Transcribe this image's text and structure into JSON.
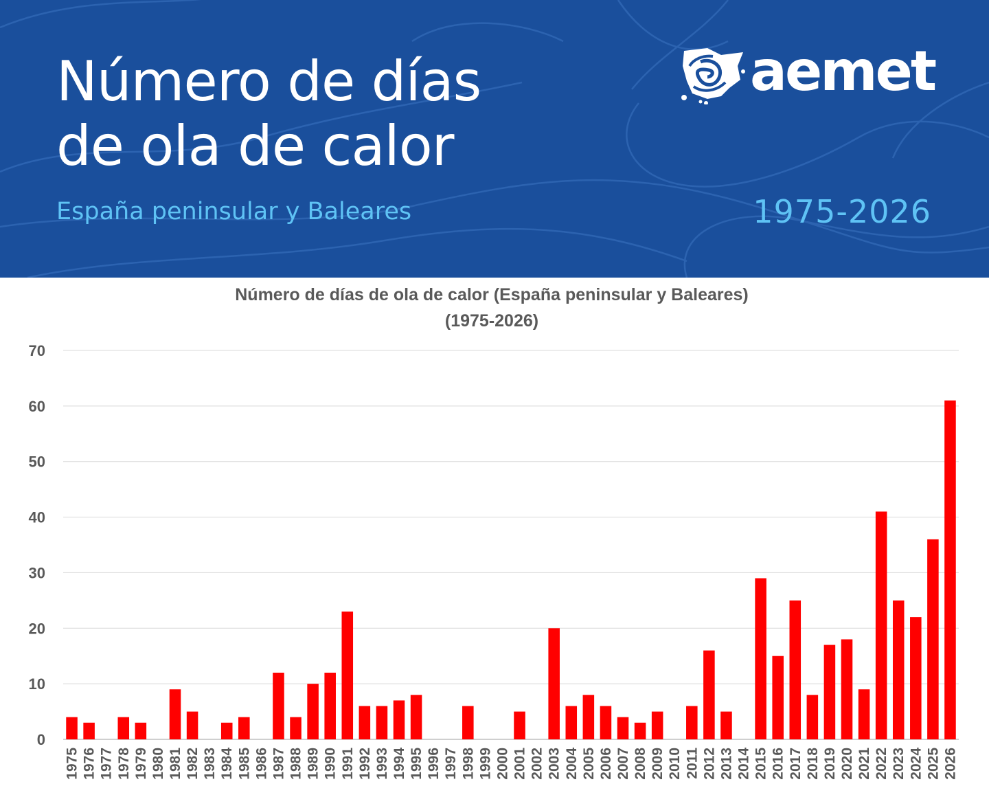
{
  "header": {
    "title_line1": "Número de días",
    "title_line2": "de ola de calor",
    "subtitle": "España peninsular y Baleares",
    "range": "1975-2026",
    "logo_text": "aemet",
    "logo_icon": "aemet-spain-map-icon",
    "background_color": "#1a4f9c",
    "accent_color": "#5fc3f5"
  },
  "chart_data": {
    "type": "bar",
    "title": "Número de días de ola de calor (España peninsular y Baleares)",
    "subtitle": "(1975-2026)",
    "xlabel": "",
    "ylabel": "",
    "ylim": [
      0,
      70
    ],
    "yticks": [
      0,
      10,
      20,
      30,
      40,
      50,
      60,
      70
    ],
    "grid": true,
    "legend": "none",
    "bar_color": "#ff0000",
    "categories": [
      "1975",
      "1976",
      "1977",
      "1978",
      "1979",
      "1980",
      "1981",
      "1982",
      "1983",
      "1984",
      "1985",
      "1986",
      "1987",
      "1988",
      "1989",
      "1990",
      "1991",
      "1992",
      "1993",
      "1994",
      "1995",
      "1996",
      "1997",
      "1998",
      "1999",
      "2000",
      "2001",
      "2002",
      "2003",
      "2004",
      "2005",
      "2006",
      "2007",
      "2008",
      "2009",
      "2010",
      "2011",
      "2012",
      "2013",
      "2014",
      "2015",
      "2016",
      "2017",
      "2018",
      "2019",
      "2020",
      "2021",
      "2022",
      "2023",
      "2024",
      "2025",
      "2026"
    ],
    "values": [
      4,
      3,
      0,
      4,
      3,
      0,
      9,
      5,
      0,
      3,
      4,
      0,
      12,
      4,
      10,
      12,
      23,
      6,
      6,
      7,
      8,
      0,
      0,
      6,
      0,
      0,
      5,
      0,
      20,
      6,
      8,
      6,
      4,
      3,
      5,
      0,
      6,
      16,
      5,
      0,
      29,
      15,
      25,
      8,
      17,
      18,
      9,
      41,
      25,
      22,
      36,
      61
    ]
  }
}
